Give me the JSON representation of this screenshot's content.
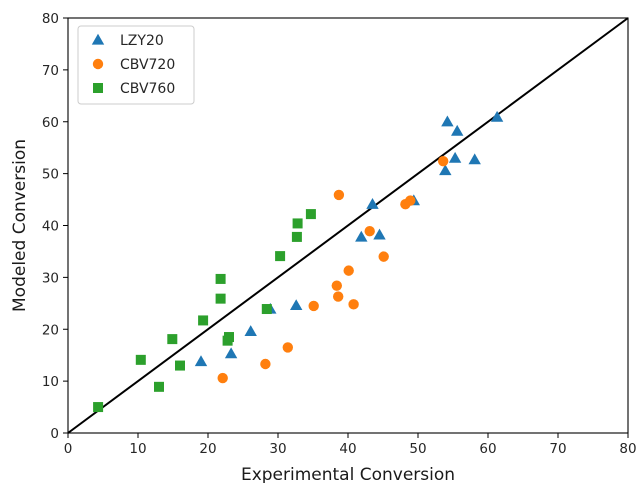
{
  "chart_data": {
    "type": "scatter",
    "xlabel": "Experimental Conversion",
    "ylabel": "Modeled Conversion",
    "xlim": [
      0,
      80
    ],
    "ylim": [
      0,
      80
    ],
    "xticks": [
      "0",
      "10",
      "20",
      "30",
      "40",
      "50",
      "60",
      "70",
      "80"
    ],
    "yticks": [
      "0",
      "10",
      "20",
      "30",
      "40",
      "50",
      "60",
      "70",
      "80"
    ],
    "grid": false,
    "legend_position": "top-left",
    "reference_line": {
      "from": [
        0,
        0
      ],
      "to": [
        80,
        80
      ],
      "color": "#000000"
    },
    "series": [
      {
        "name": "LZY20",
        "marker": "triangle",
        "color": "#1f77b4",
        "points": [
          [
            19.0,
            13.8
          ],
          [
            23.3,
            15.3
          ],
          [
            26.1,
            19.6
          ],
          [
            28.9,
            23.9
          ],
          [
            32.6,
            24.6
          ],
          [
            41.9,
            37.8
          ],
          [
            43.5,
            44.1
          ],
          [
            44.5,
            38.2
          ],
          [
            49.4,
            44.8
          ],
          [
            53.9,
            50.6
          ],
          [
            54.2,
            60.0
          ],
          [
            55.3,
            53.0
          ],
          [
            55.6,
            58.2
          ],
          [
            58.1,
            52.7
          ],
          [
            61.3,
            60.9
          ]
        ]
      },
      {
        "name": "CBV720",
        "marker": "circle",
        "color": "#ff7f0e",
        "points": [
          [
            22.1,
            10.6
          ],
          [
            28.2,
            13.3
          ],
          [
            31.4,
            16.5
          ],
          [
            35.1,
            24.5
          ],
          [
            38.4,
            28.4
          ],
          [
            38.6,
            26.3
          ],
          [
            38.7,
            45.9
          ],
          [
            40.1,
            31.3
          ],
          [
            40.8,
            24.8
          ],
          [
            43.1,
            38.9
          ],
          [
            45.1,
            34.0
          ],
          [
            48.2,
            44.1
          ],
          [
            48.9,
            44.8
          ],
          [
            53.6,
            52.4
          ]
        ]
      },
      {
        "name": "CBV760",
        "marker": "square",
        "color": "#2ca02c",
        "points": [
          [
            4.3,
            5.0
          ],
          [
            10.4,
            14.1
          ],
          [
            13.0,
            8.9
          ],
          [
            14.9,
            18.1
          ],
          [
            16.0,
            13.0
          ],
          [
            19.3,
            21.7
          ],
          [
            21.8,
            29.7
          ],
          [
            21.8,
            25.9
          ],
          [
            22.8,
            17.8
          ],
          [
            23.0,
            18.5
          ],
          [
            28.4,
            23.9
          ],
          [
            30.3,
            34.1
          ],
          [
            32.7,
            37.8
          ],
          [
            32.8,
            40.4
          ],
          [
            34.7,
            42.2
          ]
        ]
      }
    ]
  }
}
